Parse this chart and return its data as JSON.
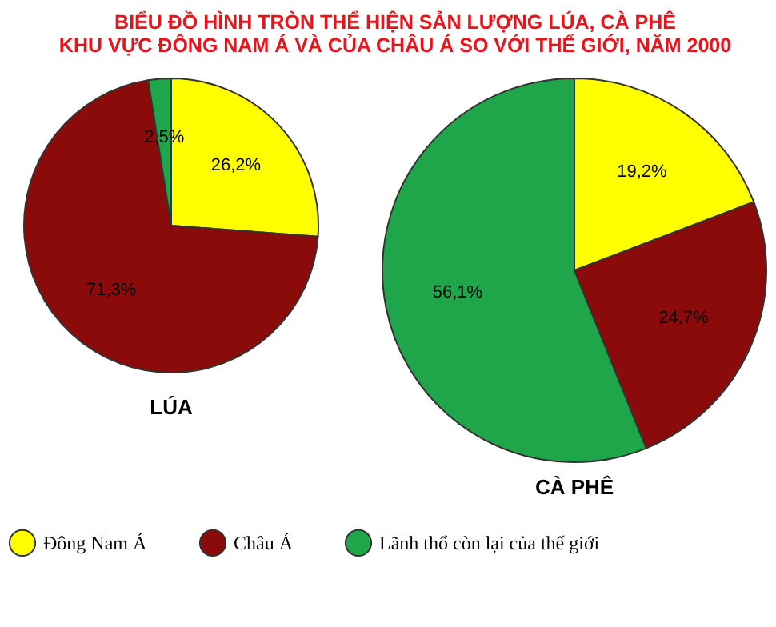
{
  "chart_data": [
    {
      "type": "pie",
      "title": "LÚA",
      "annotations": [
        "BIỂU ĐỒ HÌNH TRÒN THỂ HIỆN SẢN LƯỢNG LÚA, CÀ PHÊ",
        "KHU VỰC ĐÔNG NAM Á VÀ CỦA CHÂU Á SO VỚI THẾ GIỚI, NĂM 2000"
      ],
      "categories": [
        "Đông Nam Á",
        "Châu Á",
        "Lãnh thổ còn lại của thế giới"
      ],
      "values": [
        26.2,
        71.3,
        2.5
      ],
      "value_labels": [
        "26,2%",
        "71,3%",
        "2,5%"
      ],
      "colors": [
        "#ffff00",
        "#8b0a0a",
        "#1fa64a"
      ],
      "legend": "bottom"
    },
    {
      "type": "pie",
      "title": "CÀ PHÊ",
      "categories": [
        null,
        null,
        null
      ],
      "values": [
        19.2,
        24.7,
        56.1
      ],
      "value_labels": [
        "19,2%",
        "24,7%",
        "56,1%"
      ],
      "colors": [
        "#ffff00",
        "#8b0a0a",
        "#1fa64a"
      ]
    }
  ]
}
